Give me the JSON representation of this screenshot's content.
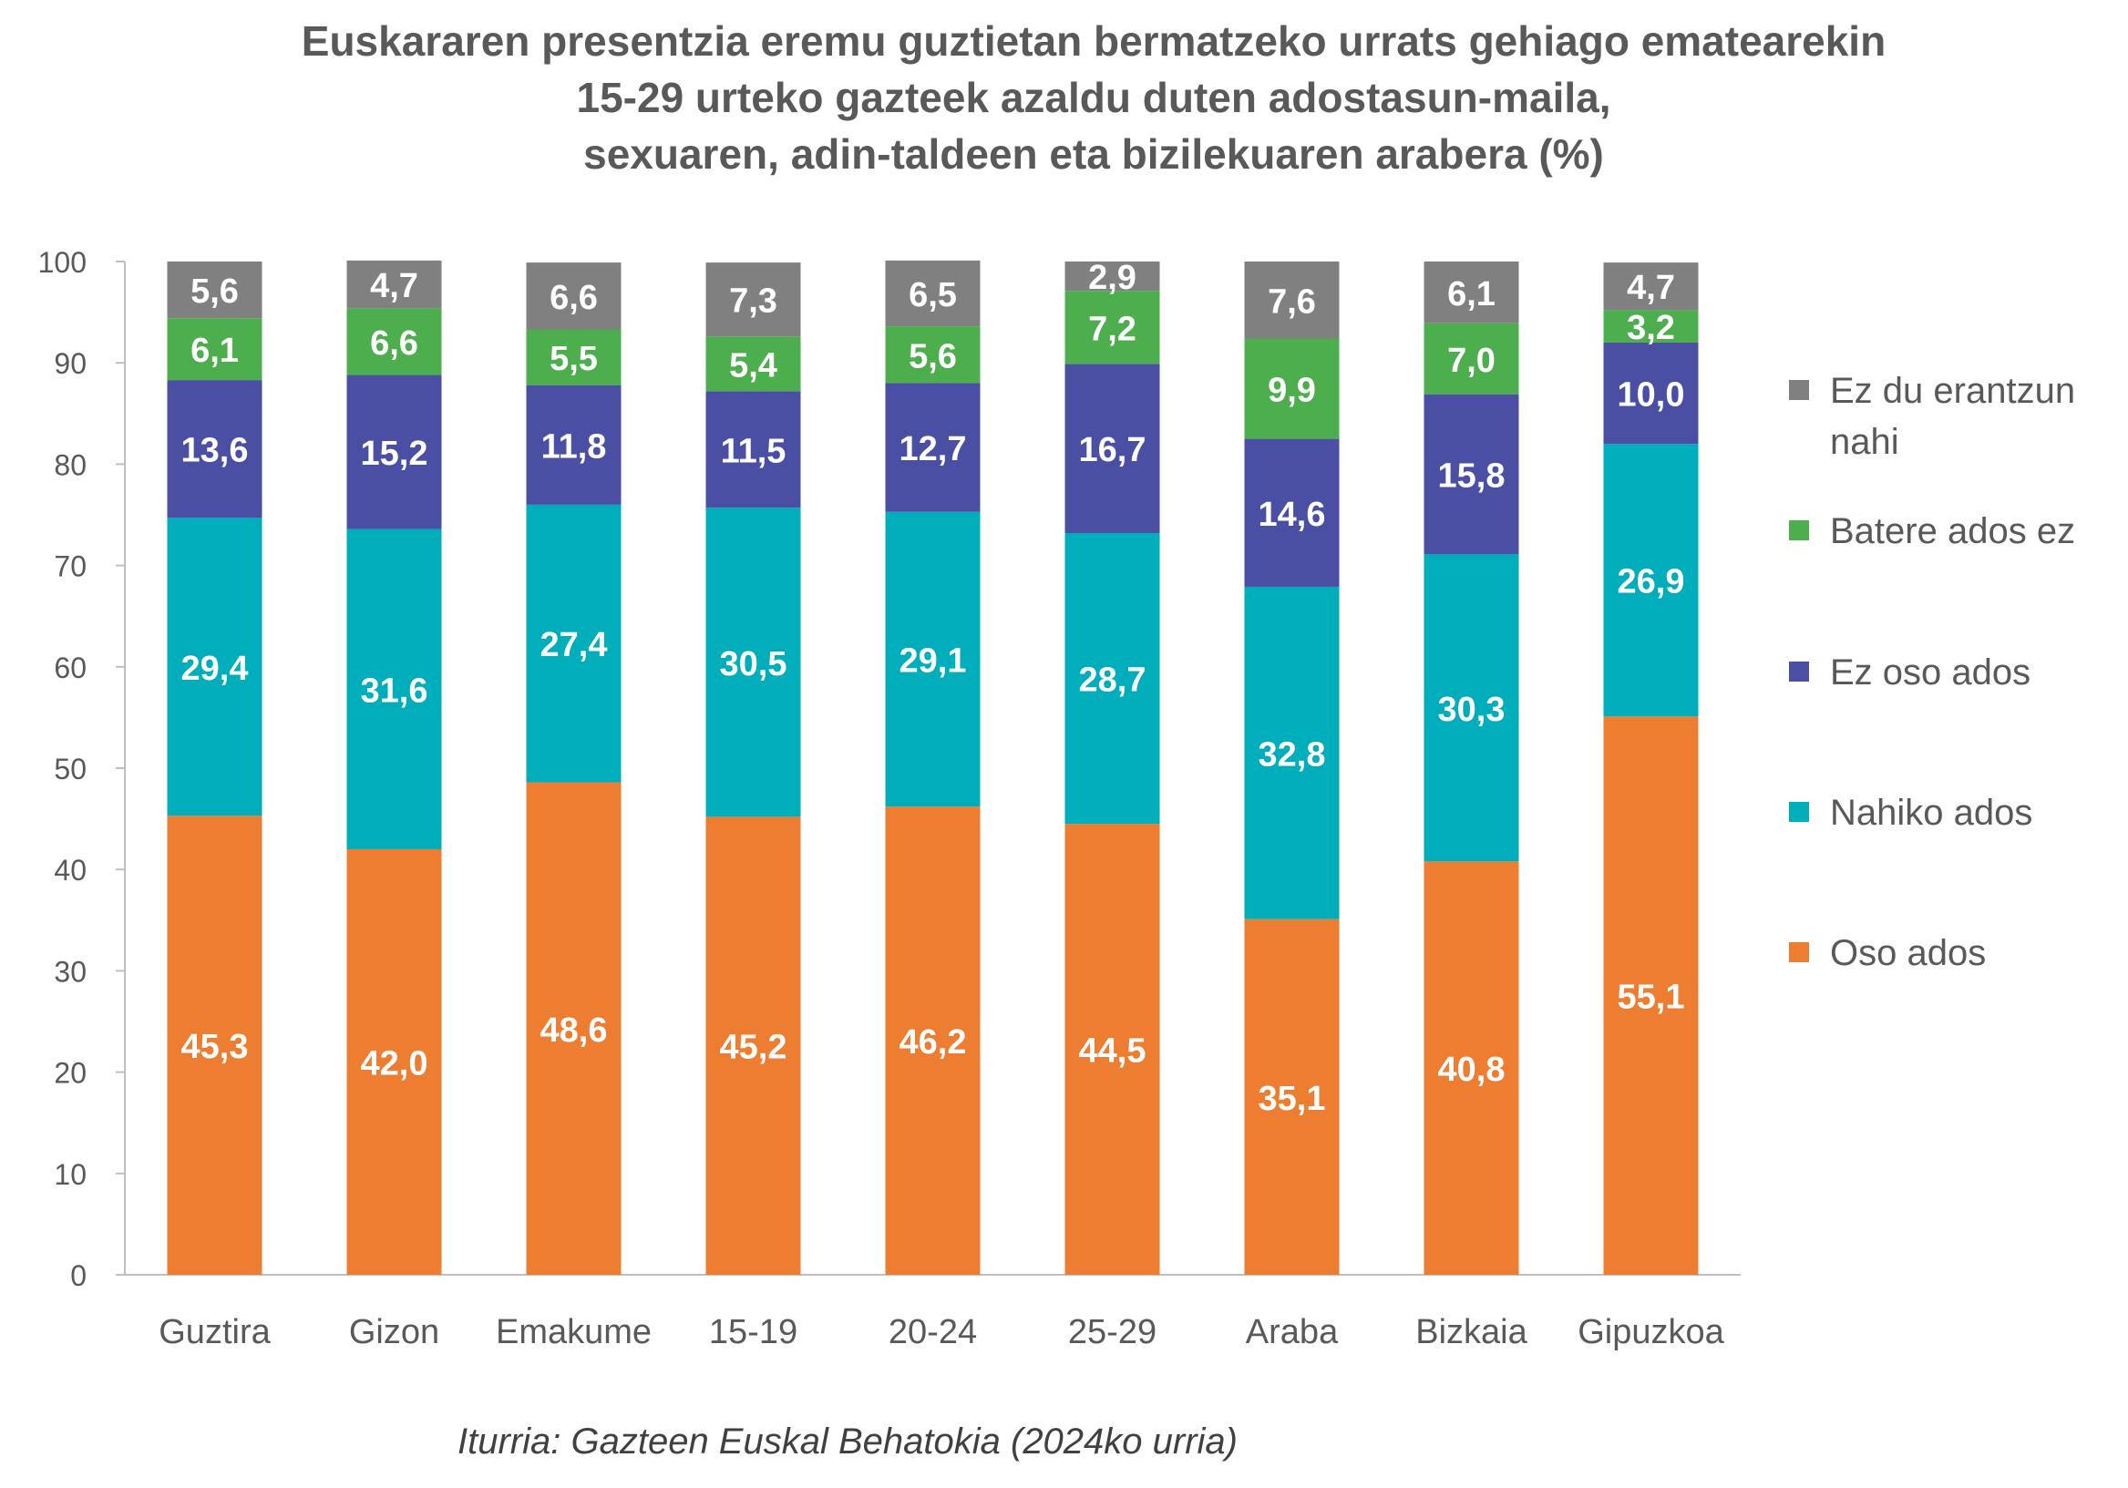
{
  "chart_data": {
    "type": "bar",
    "stacked": true,
    "title": [
      "Euskararen presentzia eremu guztietan bermatzeko urrats gehiago ematearekin",
      "15-29 urteko gazteek azaldu duten adostasun-maila,",
      "sexuaren, adin-taldeen eta bizilekuaren arabera (%)"
    ],
    "categories": [
      "Guztira",
      "Gizon",
      "Emakume",
      "15-19",
      "20-24",
      "25-29",
      "Araba",
      "Bizkaia",
      "Gipuzkoa"
    ],
    "series": [
      {
        "name": "Oso ados",
        "color": "#ED7D31",
        "labels": [
          "45,3",
          "42,0",
          "48,6",
          "45,2",
          "46,2",
          "44,5",
          "35,1",
          "40,8",
          "55,1"
        ],
        "values": [
          45.3,
          42.0,
          48.6,
          45.2,
          46.2,
          44.5,
          35.1,
          40.8,
          55.1
        ]
      },
      {
        "name": "Nahiko ados",
        "color": "#00ADBB",
        "labels": [
          "29,4",
          "31,6",
          "27,4",
          "30,5",
          "29,1",
          "28,7",
          "32,8",
          "30,3",
          "26,9"
        ],
        "values": [
          29.4,
          31.6,
          27.4,
          30.5,
          29.1,
          28.7,
          32.8,
          30.3,
          26.9
        ]
      },
      {
        "name": "Ez oso ados",
        "color": "#4A4FA3",
        "labels": [
          "13,6",
          "15,2",
          "11,8",
          "11,5",
          "12,7",
          "16,7",
          "14,6",
          "15,8",
          "10,0"
        ],
        "values": [
          13.6,
          15.2,
          11.8,
          11.5,
          12.7,
          16.7,
          14.6,
          15.8,
          10.0
        ]
      },
      {
        "name": "Batere ados ez",
        "color": "#4DAE4D",
        "labels": [
          "6,1",
          "6,6",
          "5,5",
          "5,4",
          "5,6",
          "7,2",
          "9,9",
          "7,0",
          "3,2"
        ],
        "values": [
          6.1,
          6.6,
          5.5,
          5.4,
          5.6,
          7.2,
          9.9,
          7.0,
          3.2
        ]
      },
      {
        "name": "Ez du erantzun nahi",
        "color": "#808080",
        "labels": [
          "5,6",
          "4,7",
          "6,6",
          "7,3",
          "6,5",
          "2,9",
          "7,6",
          "6,1",
          "4,7"
        ],
        "values": [
          5.6,
          4.7,
          6.6,
          7.3,
          6.5,
          2.9,
          7.6,
          6.1,
          4.7
        ]
      }
    ],
    "legend_labels": [
      {
        "series": "Ez du erantzun nahi",
        "lines": [
          "Ez du erantzun",
          "nahi"
        ]
      },
      {
        "series": "Batere ados ez",
        "lines": [
          "Batere ados ez"
        ]
      },
      {
        "series": "Ez oso ados",
        "lines": [
          "Ez oso ados"
        ]
      },
      {
        "series": "Nahiko ados",
        "lines": [
          "Nahiko ados"
        ]
      },
      {
        "series": "Oso ados",
        "lines": [
          "Oso ados"
        ]
      }
    ],
    "y_ticks": [
      "0",
      "10",
      "20",
      "30",
      "40",
      "50",
      "60",
      "70",
      "80",
      "90",
      "100"
    ],
    "ylim": [
      0,
      100
    ],
    "legend_position": "right",
    "xlabel": "",
    "ylabel": ""
  },
  "source": "Iturria: Gazteen Euskal Behatokia (2024ko urria)"
}
